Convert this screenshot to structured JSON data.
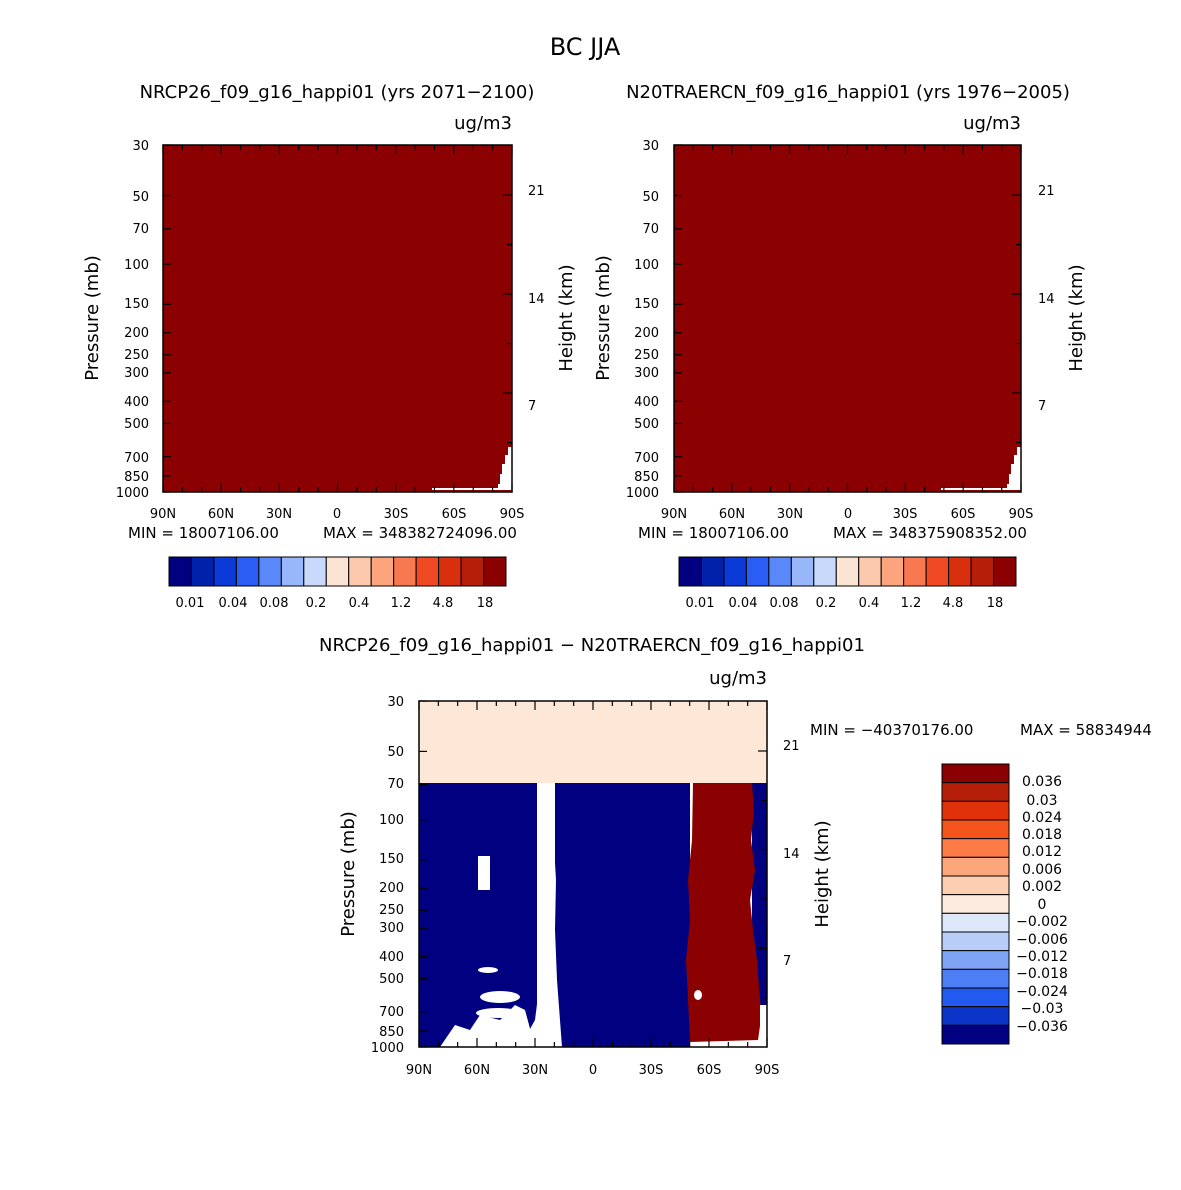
{
  "figure_title": "BC  JJA",
  "chart_data": [
    {
      "type": "heatmap",
      "title": "NRCP26_f09_g16_happi01 (yrs 2071-2100)",
      "units": "ug/m3",
      "ylabel": "Pressure (mb)",
      "y2label": "Height (km)",
      "x_ticks": [
        "90N",
        "60N",
        "30N",
        "0",
        "30S",
        "60S",
        "90S"
      ],
      "y_ticks": [
        "30",
        "50",
        "70",
        "100",
        "150",
        "200",
        "250",
        "300",
        "400",
        "500",
        "700",
        "850",
        "1000"
      ],
      "y2_ticks": [
        "21",
        "14",
        "7"
      ],
      "ylim": [
        1000,
        30
      ],
      "xlim": [
        90,
        -90
      ],
      "fill": "#8b0000",
      "min_label": "MIN = 18007106.00",
      "max_label": "MAX = 348382724096.00",
      "colorbar_labels": [
        "0.01",
        "0.04",
        "0.08",
        "0.2",
        "0.4",
        "1.2",
        "4.8",
        "18"
      ]
    },
    {
      "type": "heatmap",
      "title": "N20TRAERCN_f09_g16_happi01 (yrs 1976-2005)",
      "units": "ug/m3",
      "ylabel": "Pressure (mb)",
      "y2label": "Height (km)",
      "x_ticks": [
        "90N",
        "60N",
        "30N",
        "0",
        "30S",
        "60S",
        "90S"
      ],
      "y_ticks": [
        "30",
        "50",
        "70",
        "100",
        "150",
        "200",
        "250",
        "300",
        "400",
        "500",
        "700",
        "850",
        "1000"
      ],
      "y2_ticks": [
        "21",
        "14",
        "7"
      ],
      "ylim": [
        1000,
        30
      ],
      "xlim": [
        90,
        -90
      ],
      "fill": "#8b0000",
      "min_label": "MIN = 18007106.00",
      "max_label": "MAX = 348375908352.00",
      "colorbar_labels": [
        "0.01",
        "0.04",
        "0.08",
        "0.2",
        "0.4",
        "1.2",
        "4.8",
        "18"
      ]
    },
    {
      "type": "heatmap",
      "title": "NRCP26_f09_g16_happi01 - N20TRAERCN_f09_g16_happi01",
      "units": "ug/m3",
      "ylabel": "Pressure (mb)",
      "y2label": "Height (km)",
      "x_ticks": [
        "90N",
        "60N",
        "30N",
        "0",
        "30S",
        "60S",
        "90S"
      ],
      "y_ticks": [
        "30",
        "50",
        "70",
        "100",
        "150",
        "200",
        "250",
        "300",
        "400",
        "500",
        "700",
        "850",
        "1000"
      ],
      "y2_ticks": [
        "21",
        "14",
        "7"
      ],
      "ylim": [
        1000,
        30
      ],
      "xlim": [
        90,
        -90
      ],
      "min_label": "MIN = -40370176.00",
      "max_label": "MAX = 58834944",
      "colorbar_labels": [
        "0.036",
        "0.03",
        "0.024",
        "0.018",
        "0.012",
        "0.006",
        "0.002",
        "0",
        "-0.002",
        "-0.006",
        "-0.012",
        "-0.018",
        "-0.024",
        "-0.03",
        "-0.036"
      ]
    }
  ],
  "colors": {
    "abs_scale": [
      "#000080",
      "#0022aa",
      "#0b3ad8",
      "#2a5df4",
      "#5a88f8",
      "#98b6fa",
      "#c8d9fc",
      "#fbe4d4",
      "#fdc9ad",
      "#fca47e",
      "#f8794f",
      "#f04a25",
      "#d8300c",
      "#b51e08",
      "#8b0000"
    ],
    "diff_scale": [
      "#8b0000",
      "#b51e08",
      "#e0320a",
      "#f4541b",
      "#fb7a45",
      "#fca67b",
      "#fdcfb0",
      "#fdebdf",
      "#dde8fb",
      "#b8cdf8",
      "#7fa3f5",
      "#4d7ef4",
      "#2259ee",
      "#0a35c8",
      "#000080"
    ],
    "diff_positive": "#8b0000",
    "diff_negative": "#000080",
    "diff_near_zero": "#fde8d8"
  }
}
